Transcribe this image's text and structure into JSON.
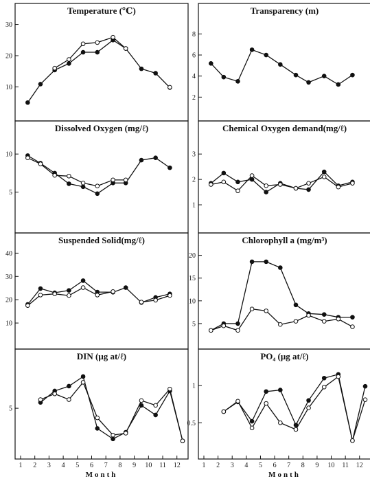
{
  "chart_data": [
    {
      "type": "line",
      "title": "Temperature (℃)",
      "ylim": [
        0,
        31
      ],
      "yticks": [
        10,
        20,
        30
      ],
      "x": [
        1.5,
        2.4,
        3.4,
        4.4,
        5.4,
        6.4,
        7.5,
        8.4,
        9.5,
        10.5,
        11.5
      ],
      "series": [
        {
          "marker": "filled",
          "values": [
            5,
            10.9,
            15.4,
            17.5,
            21.1,
            21.1,
            25.0,
            22.3,
            15.8,
            14.4,
            9.8
          ]
        },
        {
          "marker": "open",
          "values": [
            null,
            null,
            16.0,
            18.8,
            23.8,
            24.2,
            25.9,
            22.3,
            null,
            null,
            9.9
          ]
        }
      ]
    },
    {
      "type": "line",
      "title": "Transparency (m)",
      "ylim": [
        0,
        9.2
      ],
      "yticks": [
        2,
        4,
        6,
        8
      ],
      "x": [
        1.5,
        2.4,
        3.4,
        4.4,
        5.4,
        6.4,
        7.5,
        8.4,
        9.5,
        10.5,
        11.5
      ],
      "series": [
        {
          "marker": "filled",
          "values": [
            5.2,
            3.9,
            3.5,
            6.5,
            6.0,
            5.1,
            4.1,
            3.4,
            4.0,
            3.2,
            4.1
          ]
        }
      ]
    },
    {
      "type": "line",
      "title": "Dissolved Oxygen (mg/ℓ)",
      "ylim": [
        0,
        12
      ],
      "yticks": [
        5,
        10
      ],
      "x": [
        1.5,
        2.4,
        3.4,
        4.4,
        5.4,
        6.4,
        7.5,
        8.4,
        9.5,
        10.5,
        11.5
      ],
      "series": [
        {
          "marker": "filled",
          "values": [
            9.8,
            8.8,
            7.5,
            6.1,
            5.7,
            4.8,
            6.2,
            6.2,
            9.2,
            9.5,
            8.2
          ]
        },
        {
          "marker": "open",
          "values": [
            9.5,
            8.7,
            7.2,
            7.1,
            6.2,
            5.8,
            6.6,
            6.6,
            null,
            null,
            null
          ]
        }
      ]
    },
    {
      "type": "line",
      "title": "Chemical Oxygen demand(mg/ℓ)",
      "ylim": [
        0,
        3.6
      ],
      "yticks": [
        1,
        2,
        3
      ],
      "x": [
        1.5,
        2.4,
        3.4,
        4.4,
        5.4,
        6.4,
        7.5,
        8.4,
        9.5,
        10.5,
        11.5
      ],
      "series": [
        {
          "marker": "filled",
          "values": [
            1.85,
            2.25,
            1.9,
            2.0,
            1.5,
            1.85,
            1.65,
            1.6,
            2.3,
            1.75,
            1.9
          ]
        },
        {
          "marker": "open",
          "values": [
            1.8,
            1.9,
            1.55,
            2.15,
            1.75,
            1.8,
            1.65,
            1.85,
            2.1,
            1.7,
            1.85
          ]
        }
      ]
    },
    {
      "type": "line",
      "title": "Suspended Solid(mg/ℓ)",
      "ylim": [
        0,
        41
      ],
      "yticks": [
        10,
        20,
        30,
        40
      ],
      "x": [
        1.5,
        2.4,
        3.4,
        4.4,
        5.4,
        6.4,
        7.5,
        8.4,
        9.5,
        10.5,
        11.5
      ],
      "series": [
        {
          "marker": "filled",
          "values": [
            18,
            24.8,
            23,
            24,
            28.2,
            23.3,
            23.2,
            25.2,
            18.8,
            21,
            22.5
          ]
        },
        {
          "marker": "open",
          "values": [
            17.5,
            22,
            22.5,
            21.8,
            25.2,
            22,
            23.5,
            null,
            19,
            19.8,
            21.8
          ]
        }
      ]
    },
    {
      "type": "line",
      "title": "Chlorophyll a (mg/m³)",
      "ylim": [
        0,
        21
      ],
      "yticks": [
        5,
        10,
        15,
        20
      ],
      "x": [
        1.5,
        2.4,
        3.4,
        4.4,
        5.4,
        6.4,
        7.5,
        8.4,
        9.5,
        10.5,
        11.5
      ],
      "series": [
        {
          "marker": "filled",
          "values": [
            3.5,
            5,
            5,
            18.6,
            18.6,
            17.3,
            9.1,
            7.2,
            7,
            6.4,
            6.4
          ]
        },
        {
          "marker": "open",
          "values": [
            3.5,
            4.5,
            3.5,
            8.2,
            7.8,
            4.8,
            5.5,
            6.8,
            5.5,
            6,
            4.3
          ]
        }
      ]
    },
    {
      "type": "line",
      "title": "DIN (μg at/ℓ)",
      "ylim": [
        0,
        9.3
      ],
      "yticks": [
        5
      ],
      "x": [
        2.4,
        3.4,
        4.4,
        5.4,
        6.4,
        7.5,
        8.4,
        9.5,
        10.5,
        11.5,
        12.4
      ],
      "series": [
        {
          "marker": "filled",
          "values": [
            5.6,
            6.8,
            7.3,
            8.3,
            2.9,
            1.8,
            2.5,
            5.3,
            4.3,
            6.8,
            1.6
          ]
        },
        {
          "marker": "open",
          "values": [
            5.9,
            6.5,
            5.9,
            7.7,
            4.0,
            2.2,
            2.4,
            5.8,
            5.3,
            7.0,
            1.6
          ]
        }
      ]
    },
    {
      "type": "line",
      "title": "PO₄ (μg at/ℓ)",
      "ylim": [
        0.05,
        1.25
      ],
      "yticks": [
        0.5,
        1
      ],
      "x": [
        2.4,
        3.4,
        4.4,
        5.4,
        6.4,
        7.5,
        8.4,
        9.5,
        10.5,
        11.5,
        12.4
      ],
      "series": [
        {
          "marker": "filled",
          "values": [
            0.65,
            0.78,
            0.52,
            0.92,
            0.94,
            0.47,
            0.8,
            1.1,
            1.15,
            0.26,
            0.99
          ]
        },
        {
          "marker": "open",
          "values": [
            0.65,
            0.79,
            0.43,
            0.76,
            0.5,
            0.41,
            0.7,
            0.98,
            1.12,
            0.26,
            0.81
          ]
        }
      ]
    }
  ],
  "x_ticks": [
    "1",
    "2",
    "3",
    "4",
    "5",
    "6",
    "7",
    "8",
    "9",
    "10",
    "11",
    "12"
  ],
  "x_label": "Month"
}
